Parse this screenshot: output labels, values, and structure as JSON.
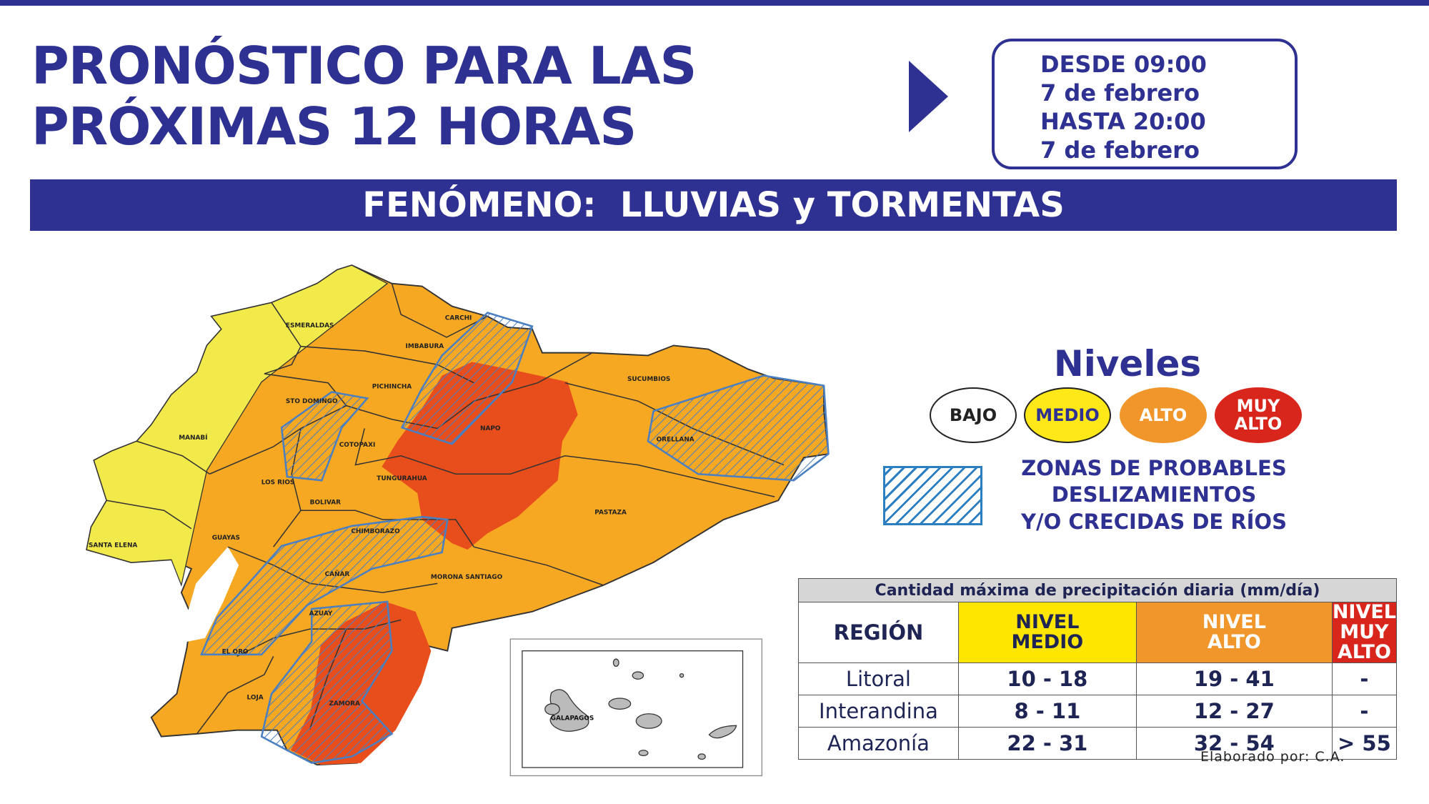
{
  "header": {
    "title_lines": [
      "PRONÓSTICO PARA LAS",
      "PRÓXIMAS 12 HORAS"
    ],
    "date_range": [
      "DESDE 09:00",
      "7 de febrero",
      "HASTA 20:00",
      "7 de febrero"
    ]
  },
  "banner": {
    "text": "FENÓMENO:  LLUVIAS y TORMENTAS"
  },
  "map": {
    "provinces": [
      "ESMERALDAS",
      "CARCHI",
      "IMBABURA",
      "PICHINCHA",
      "STO DOMINGO",
      "MANABÍ",
      "COTOPAXI",
      "NAPO",
      "SUCUMBIOS",
      "ORELLANA",
      "LOS RIOS",
      "TUNGURAHUA",
      "BOLIVAR",
      "CHIMBORAZO",
      "PASTAZA",
      "SANTA ELENA",
      "GUAYAS",
      "MORONA SANTIAGO",
      "CAÑAR",
      "AZUAY",
      "EL ORO",
      "LOJA",
      "ZAMORA"
    ],
    "inset_label": "GALAPAGOS",
    "colors": {
      "medio": "#f2ea4a",
      "alto": "#f7a823",
      "muy_alto": "#e84e1b",
      "hatch": "#4a7fc1"
    }
  },
  "legend": {
    "title": "Niveles",
    "levels": [
      {
        "label": "BAJO",
        "color": "#ffffff"
      },
      {
        "label": "MEDIO",
        "color": "#ffe817"
      },
      {
        "label": "ALTO",
        "color": "#f0962a"
      },
      {
        "label": "MUY ALTO",
        "color": "#d9261c"
      }
    ],
    "zones_lines": [
      "ZONAS DE PROBABLES",
      "DESLIZAMIENTOS",
      "Y/O CRECIDAS DE RÍOS"
    ]
  },
  "table": {
    "title": "Cantidad máxima de precipitación diaria (mm/día)",
    "headers": [
      "REGIÓN",
      "NIVEL MEDIO",
      "NIVEL ALTO",
      "NIVEL MUY ALTO"
    ],
    "rows": [
      [
        "Litoral",
        "10 - 18",
        "19 - 41",
        "-"
      ],
      [
        "Interandina",
        "8 - 11",
        "12 - 27",
        "-"
      ],
      [
        "Amazonía",
        "22 - 31",
        "32 - 54",
        "> 55"
      ]
    ]
  },
  "credit": "Elaborado por: C.A."
}
